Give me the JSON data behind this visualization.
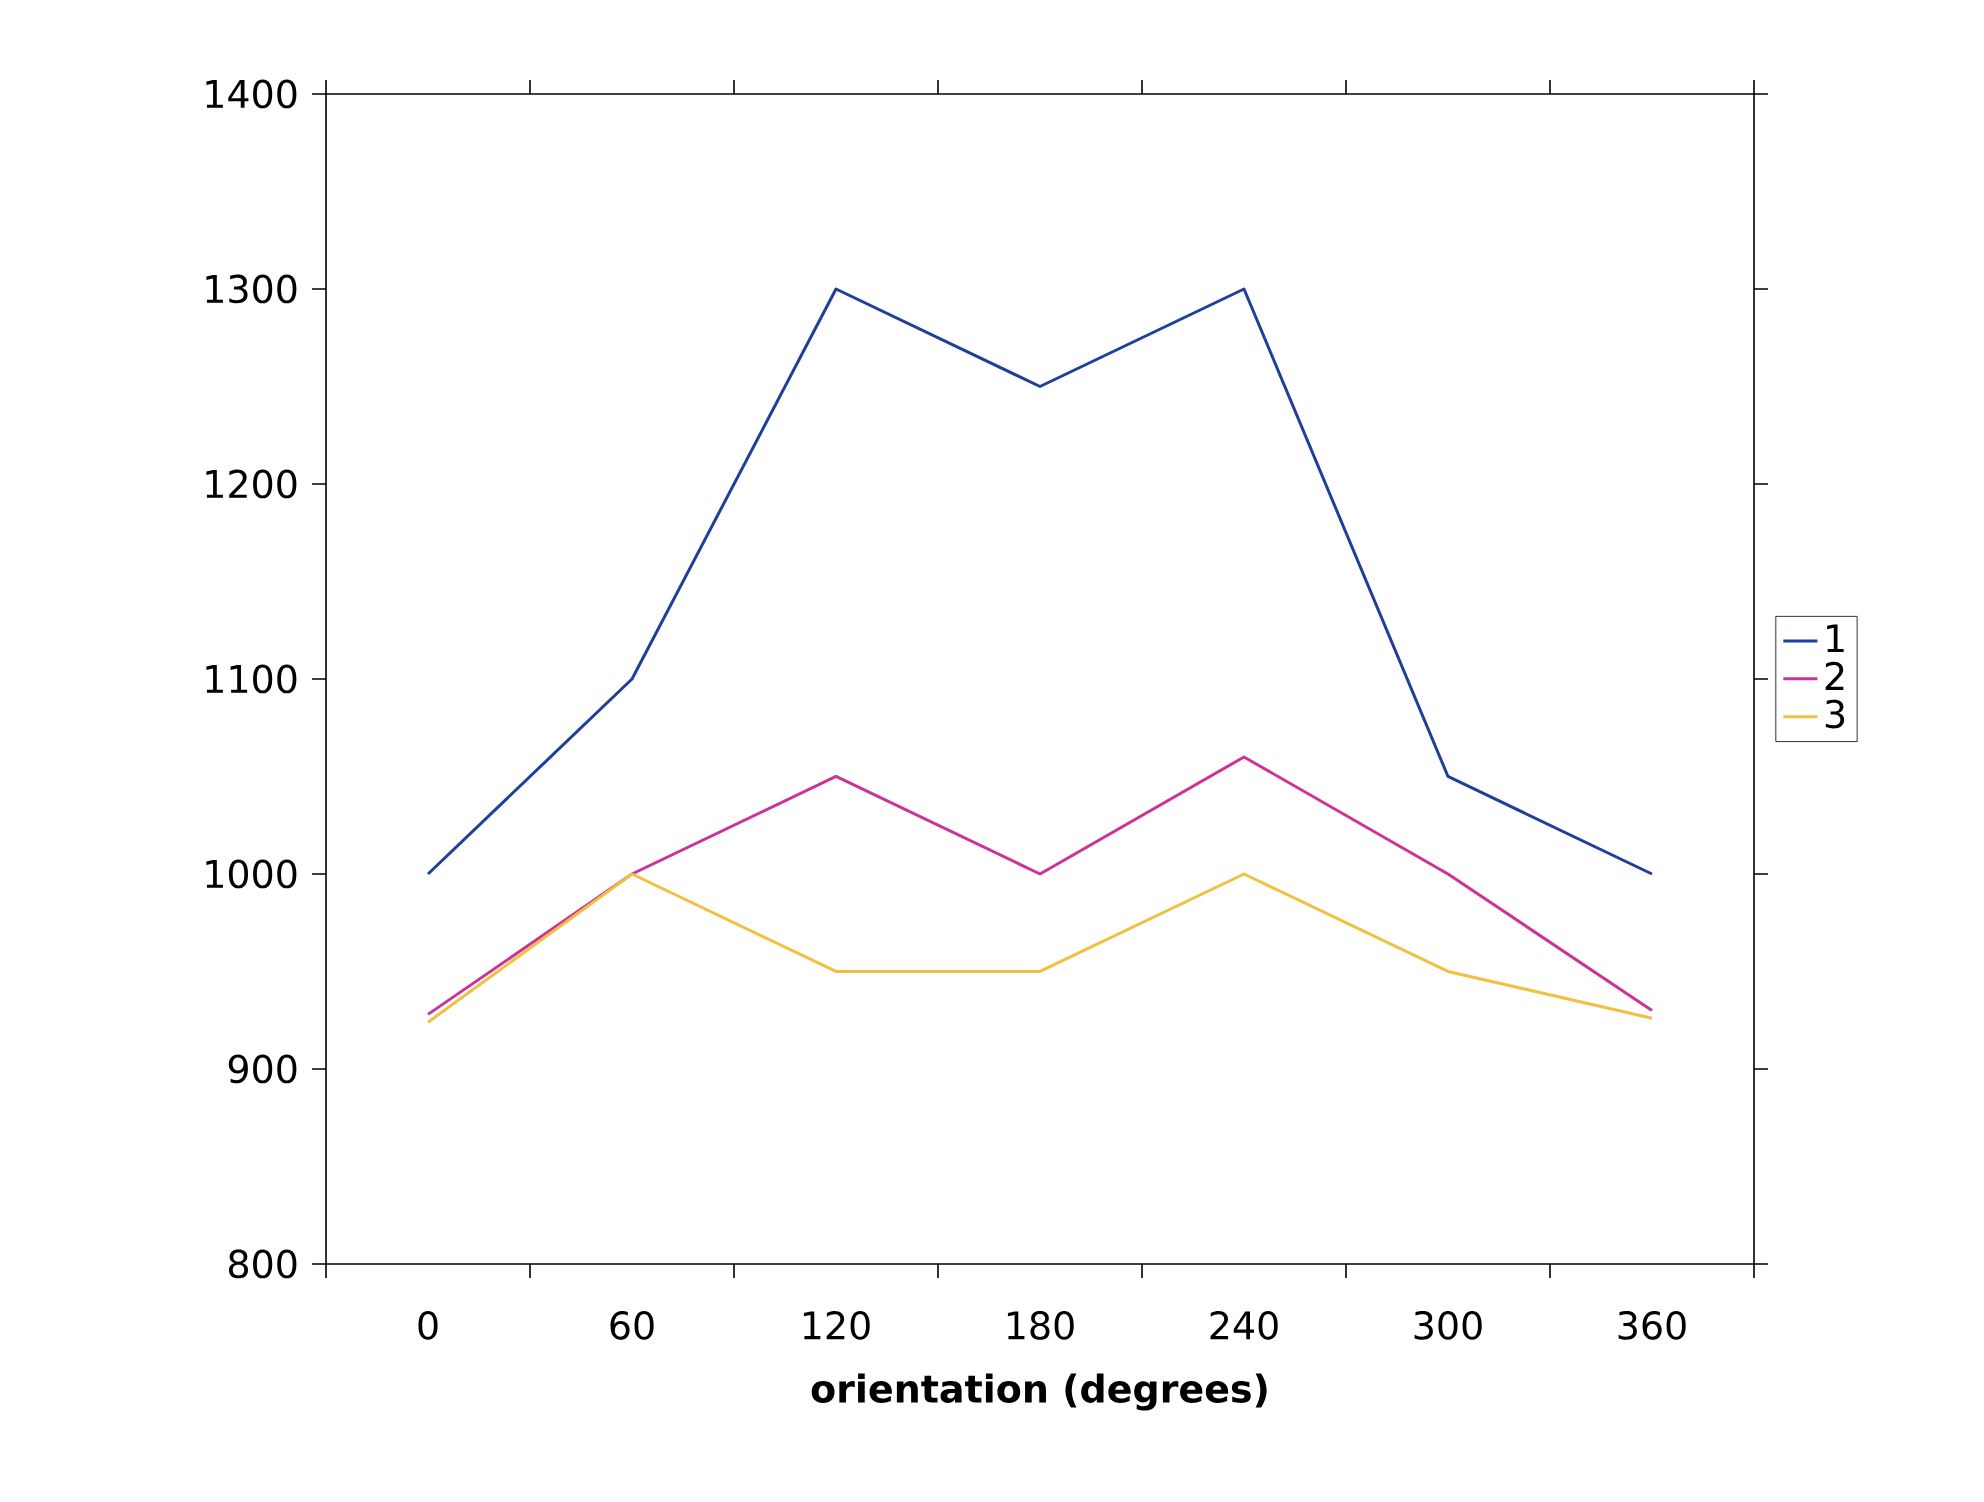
{
  "chart_data": {
    "type": "line",
    "xlabel": "orientation (degrees)",
    "categories": [
      "0",
      "60",
      "120",
      "180",
      "240",
      "300",
      "360"
    ],
    "series": [
      {
        "name": "1",
        "color": "#1f3f99",
        "values": [
          1000,
          1100,
          1300,
          1250,
          1300,
          1050,
          1000
        ]
      },
      {
        "name": "2",
        "color": "#cc3399",
        "values": [
          928,
          1000,
          1050,
          1000,
          1060,
          1000,
          930
        ]
      },
      {
        "name": "3",
        "color": "#f0c040",
        "values": [
          924,
          1000,
          950,
          950,
          1000,
          950,
          926
        ]
      }
    ],
    "ylim": [
      800,
      1400
    ],
    "yticks": [
      800,
      900,
      1000,
      1100,
      1200,
      1300,
      1400
    ],
    "legend": "right",
    "grid": false,
    "marker": "none",
    "line_style": "solid"
  }
}
